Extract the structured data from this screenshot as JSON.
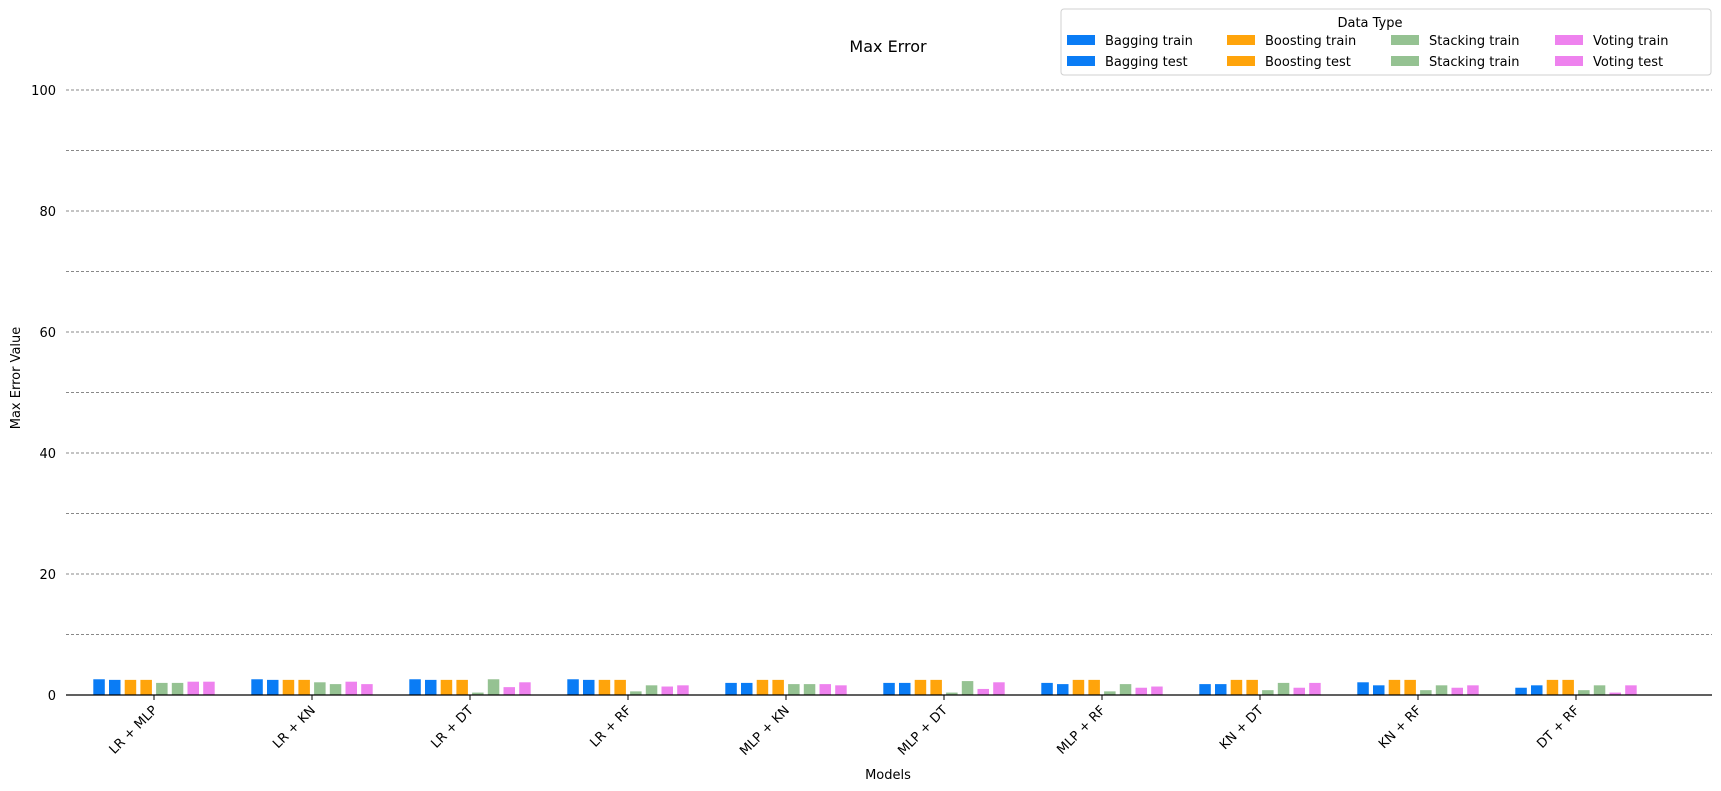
{
  "chart_data": {
    "type": "bar",
    "title": "Max Error",
    "xlabel": "Models",
    "ylabel": "Max Error Value",
    "ylim": [
      0,
      100
    ],
    "yticks": [
      0,
      20,
      40,
      60,
      80,
      100
    ],
    "grid": true,
    "legend": {
      "title": "Data Type",
      "placement": "top-right",
      "columns": 4
    },
    "categories": [
      "LR + MLP",
      "LR + KN",
      "LR + DT",
      "LR + RF",
      "MLP + KN",
      "MLP + DT",
      "MLP + RF",
      "KN + DT",
      "KN + RF",
      "DT + RF"
    ],
    "series": [
      {
        "name": "Bagging train",
        "color": "#0a7cf5",
        "values": [
          2.6,
          2.6,
          2.6,
          2.6,
          2.0,
          2.0,
          2.0,
          1.8,
          2.1,
          1.2
        ]
      },
      {
        "name": "Bagging test",
        "color": "#0a7cf5",
        "values": [
          2.5,
          2.5,
          2.5,
          2.5,
          2.0,
          2.0,
          1.8,
          1.8,
          1.6,
          1.6
        ]
      },
      {
        "name": "Boosting train",
        "color": "#ffa40b",
        "values": [
          2.5,
          2.5,
          2.5,
          2.5,
          2.5,
          2.5,
          2.5,
          2.5,
          2.5,
          2.5
        ]
      },
      {
        "name": "Boosting test",
        "color": "#ffa40b",
        "values": [
          2.5,
          2.5,
          2.5,
          2.5,
          2.5,
          2.5,
          2.5,
          2.5,
          2.5,
          2.5
        ]
      },
      {
        "name": "Stacking train",
        "color": "#95c292",
        "values": [
          2.0,
          2.1,
          0.4,
          0.6,
          1.8,
          0.4,
          0.6,
          0.8,
          0.8,
          0.8
        ]
      },
      {
        "name": "Stacking train",
        "color": "#95c292",
        "values": [
          2.0,
          1.8,
          2.6,
          1.6,
          1.8,
          2.3,
          1.8,
          2.0,
          1.6,
          1.6
        ]
      },
      {
        "name": "Voting train",
        "color": "#ee82ee",
        "values": [
          2.2,
          2.2,
          1.3,
          1.4,
          1.8,
          1.0,
          1.2,
          1.2,
          1.2,
          0.4
        ]
      },
      {
        "name": "Voting test",
        "color": "#ee82ee",
        "values": [
          2.2,
          1.8,
          2.1,
          1.6,
          1.6,
          2.1,
          1.4,
          2.0,
          1.6,
          1.6
        ]
      }
    ]
  }
}
